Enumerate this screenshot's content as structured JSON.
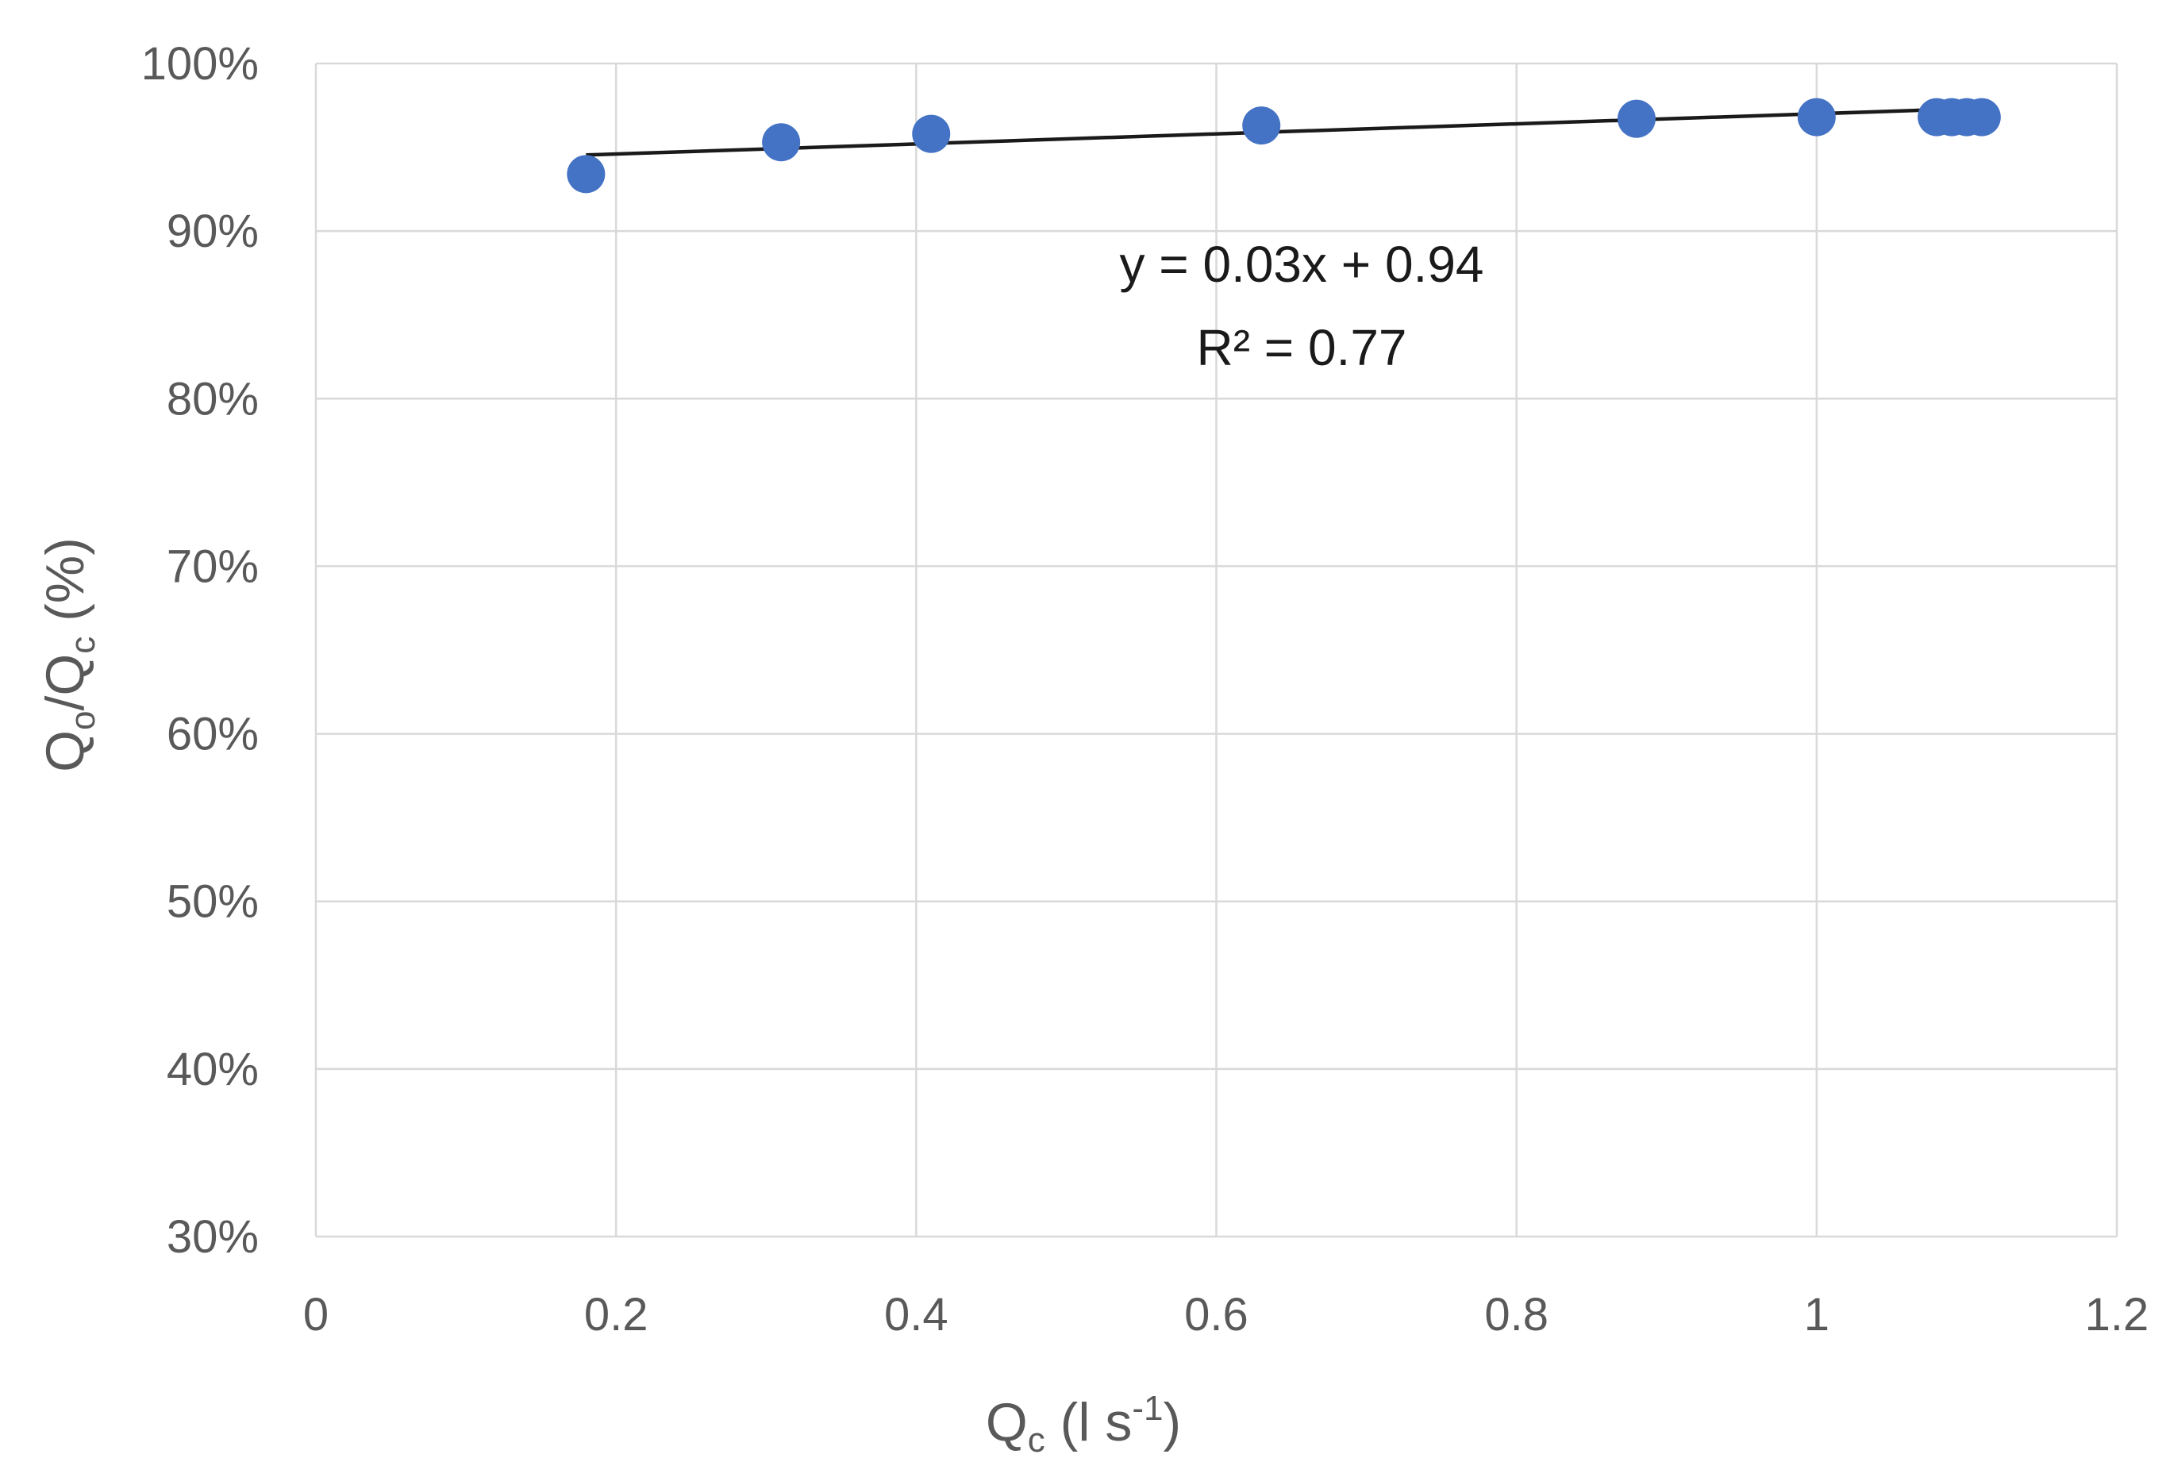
{
  "chart_data": {
    "type": "scatter",
    "xlabel": {
      "main": "Q",
      "sub": "c",
      "rest": " (l s",
      "sup": "-1",
      "end": ")"
    },
    "ylabel": {
      "p1": "Q",
      "s1": "o",
      "p2": "/Q",
      "s2": "c",
      "p3": " (%)"
    },
    "xlim": [
      0,
      1.2
    ],
    "ylim": [
      0.3,
      1.0
    ],
    "x_ticks": [
      0,
      0.2,
      0.4,
      0.6,
      0.8,
      1.0,
      1.2
    ],
    "x_tick_labels": [
      "0",
      "0.2",
      "0.4",
      "0.6",
      "0.8",
      "1",
      "1.2"
    ],
    "y_ticks": [
      0.3,
      0.4,
      0.5,
      0.6,
      0.7,
      0.8,
      0.9,
      1.0
    ],
    "y_tick_labels": [
      "30%",
      "40%",
      "50%",
      "60%",
      "70%",
      "80%",
      "90%",
      "100%"
    ],
    "grid": true,
    "legend": "none",
    "series": [
      {
        "color": "#4472c4",
        "x": [
          0.18,
          0.31,
          0.41,
          0.63,
          0.88,
          1.0,
          1.08,
          1.09,
          1.1,
          1.11
        ],
        "y": [
          0.934,
          0.953,
          0.958,
          0.963,
          0.967,
          0.968,
          0.968,
          0.968,
          0.968,
          0.968
        ]
      }
    ],
    "trendline": {
      "slope": 0.03,
      "intercept": 0.94,
      "x_range": [
        0.18,
        1.11
      ],
      "equation": "y = 0.03x + 0.94",
      "r2_label": "R² = 0.77"
    }
  }
}
